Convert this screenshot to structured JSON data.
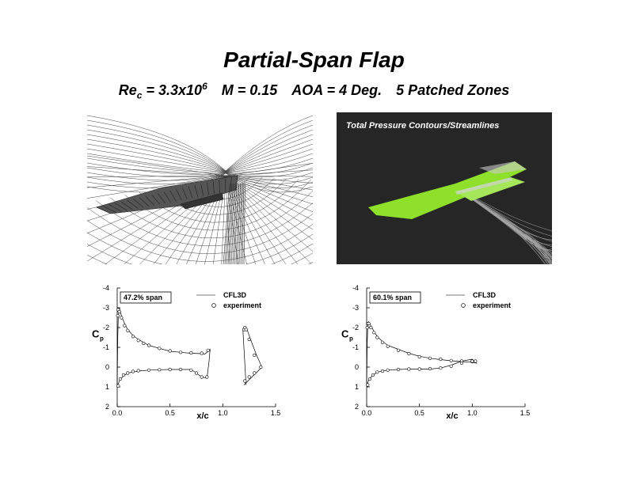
{
  "title": "Partial-Span Flap",
  "subtitle": {
    "re_prefix": "Re",
    "re_sub": "c",
    "re_value": " = 3.3x10",
    "re_exp": "6",
    "mach": "M = 0.15",
    "aoa": "AOA = 4 Deg.",
    "zones": "5 Patched Zones"
  },
  "render_caption": "Total Pressure Contours/Streamlines",
  "colors": {
    "wing_green": "#8ee02a",
    "render_bg": "#262626",
    "mesh_line": "#444444"
  },
  "chart_data": [
    {
      "type": "line",
      "inset_label": "47.2% span",
      "xlabel": "x/c",
      "ylabel_main": "C",
      "ylabel_sub": "p",
      "xlim": [
        0.0,
        1.5
      ],
      "ylim": [
        -4,
        2
      ],
      "y_inverted": true,
      "xticks": [
        "0.0",
        "0.5",
        "1.0",
        "1.5"
      ],
      "yticks": [
        "-4",
        "-3",
        "-2",
        "-1",
        "0",
        "1",
        "2"
      ],
      "legend": [
        {
          "name": "CFL3D",
          "style": "line"
        },
        {
          "name": "experiment",
          "style": "circle"
        }
      ],
      "series": [
        {
          "name": "CFL3D",
          "kind": "line",
          "x": [
            0.0,
            0.005,
            0.01,
            0.02,
            0.04,
            0.07,
            0.1,
            0.15,
            0.2,
            0.3,
            0.4,
            0.5,
            0.6,
            0.7,
            0.8,
            0.83,
            0.86,
            0.88,
            0.87,
            0.85,
            0.8,
            0.75,
            0.7,
            0.6,
            0.5,
            0.4,
            0.3,
            0.2,
            0.1,
            0.05,
            0.02,
            0.01,
            0.0
          ],
          "y": [
            0.9,
            -1.5,
            -2.5,
            -3.0,
            -2.6,
            -2.2,
            -1.9,
            -1.6,
            -1.4,
            -1.1,
            -0.95,
            -0.8,
            -0.75,
            -0.7,
            -0.68,
            -0.66,
            -0.8,
            -0.9,
            -0.3,
            0.55,
            0.5,
            0.3,
            0.12,
            0.12,
            0.12,
            0.13,
            0.15,
            0.2,
            0.3,
            0.5,
            0.7,
            0.85,
            0.9
          ]
        },
        {
          "name": "experiment",
          "kind": "points",
          "x": [
            0.005,
            0.01,
            0.02,
            0.04,
            0.07,
            0.1,
            0.15,
            0.2,
            0.25,
            0.3,
            0.4,
            0.5,
            0.6,
            0.7,
            0.8,
            0.86,
            0.01,
            0.03,
            0.06,
            0.1,
            0.15,
            0.2,
            0.3,
            0.4,
            0.5,
            0.6,
            0.7,
            0.75,
            0.8,
            0.85
          ],
          "y": [
            -2.6,
            -2.9,
            -2.8,
            -2.5,
            -2.1,
            -1.85,
            -1.55,
            -1.35,
            -1.2,
            -1.1,
            -0.95,
            -0.82,
            -0.75,
            -0.72,
            -0.7,
            -0.85,
            0.95,
            0.6,
            0.4,
            0.3,
            0.22,
            0.18,
            0.15,
            0.13,
            0.12,
            0.12,
            0.15,
            0.3,
            0.5,
            0.5
          ]
        },
        {
          "name": "CFL3D",
          "kind": "line",
          "x": [
            1.22,
            1.2,
            1.19,
            1.2,
            1.23,
            1.27,
            1.32,
            1.37,
            1.2
          ],
          "y": [
            0.9,
            -1.0,
            -1.9,
            -2.0,
            -1.9,
            -1.3,
            -0.6,
            0.0,
            0.9
          ]
        },
        {
          "name": "experiment",
          "kind": "points",
          "x": [
            1.2,
            1.21,
            1.22,
            1.25,
            1.3,
            1.36,
            1.21,
            1.25,
            1.3
          ],
          "y": [
            -1.9,
            -2.0,
            -1.9,
            -1.4,
            -0.6,
            0.0,
            0.7,
            0.5,
            0.3
          ]
        }
      ]
    },
    {
      "type": "line",
      "inset_label": "60.1% span",
      "xlabel": "x/c",
      "ylabel_main": "C",
      "ylabel_sub": "p",
      "xlim": [
        0.0,
        1.5
      ],
      "ylim": [
        -4,
        2
      ],
      "y_inverted": true,
      "xticks": [
        "0.0",
        "0.5",
        "1.0",
        "1.5"
      ],
      "yticks": [
        "-4",
        "-3",
        "-2",
        "-1",
        "0",
        "1",
        "2"
      ],
      "legend": [
        {
          "name": "CFL3D",
          "style": "line"
        },
        {
          "name": "experiment",
          "style": "circle"
        }
      ],
      "series": [
        {
          "name": "CFL3D",
          "kind": "line",
          "x": [
            0.0,
            0.005,
            0.01,
            0.02,
            0.04,
            0.07,
            0.1,
            0.15,
            0.2,
            0.3,
            0.4,
            0.5,
            0.6,
            0.7,
            0.8,
            0.9,
            1.0,
            1.04,
            1.0,
            0.9,
            0.8,
            0.7,
            0.6,
            0.5,
            0.4,
            0.3,
            0.2,
            0.1,
            0.05,
            0.02,
            0.01,
            0.0
          ],
          "y": [
            0.9,
            -1.2,
            -2.0,
            -2.3,
            -2.1,
            -1.8,
            -1.55,
            -1.3,
            -1.1,
            -0.9,
            -0.7,
            -0.55,
            -0.45,
            -0.38,
            -0.32,
            -0.28,
            -0.25,
            -0.2,
            -0.4,
            -0.3,
            -0.1,
            0.05,
            0.1,
            0.1,
            0.1,
            0.12,
            0.15,
            0.25,
            0.45,
            0.65,
            0.8,
            0.9
          ]
        },
        {
          "name": "experiment",
          "kind": "points",
          "x": [
            0.005,
            0.01,
            0.02,
            0.04,
            0.07,
            0.1,
            0.15,
            0.2,
            0.3,
            0.4,
            0.5,
            0.6,
            0.7,
            0.8,
            0.9,
            1.0,
            1.03,
            0.01,
            0.03,
            0.06,
            0.1,
            0.15,
            0.2,
            0.3,
            0.4,
            0.5,
            0.6,
            0.7,
            0.8,
            0.9,
            1.0
          ],
          "y": [
            -2.0,
            -2.2,
            -2.2,
            -2.0,
            -1.75,
            -1.5,
            -1.25,
            -1.05,
            -0.85,
            -0.68,
            -0.52,
            -0.45,
            -0.4,
            -0.33,
            -0.3,
            -0.28,
            -0.3,
            0.9,
            0.6,
            0.4,
            0.25,
            0.2,
            0.15,
            0.12,
            0.1,
            0.1,
            0.08,
            0.05,
            -0.05,
            -0.2,
            -0.3
          ]
        }
      ]
    }
  ]
}
